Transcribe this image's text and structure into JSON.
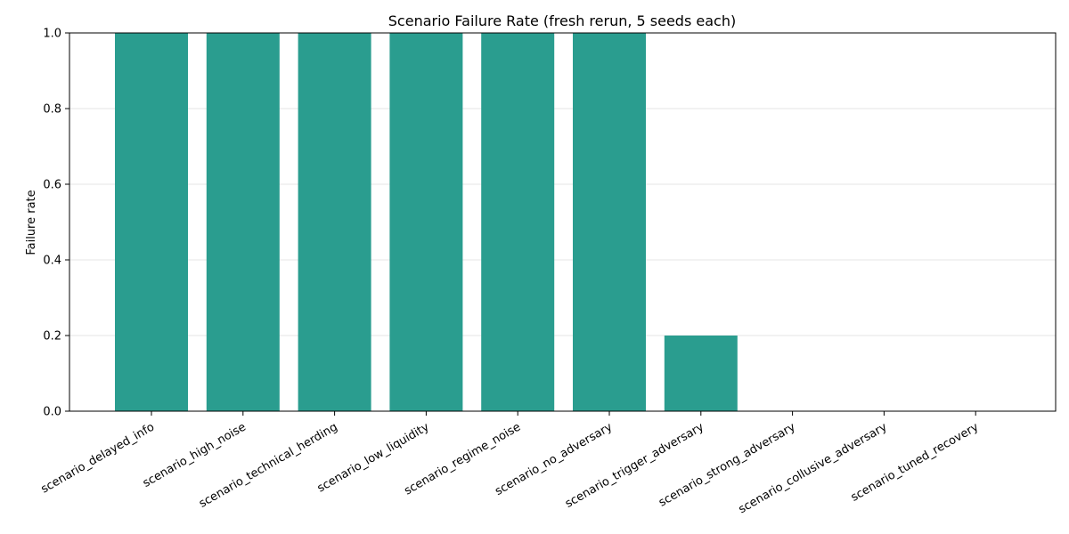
{
  "chart_data": {
    "type": "bar",
    "title": "Scenario Failure Rate (fresh rerun, 5 seeds each)",
    "xlabel": "",
    "ylabel": "Failure rate",
    "ylim": [
      0,
      1.0
    ],
    "yticks": [
      "0.0",
      "0.2",
      "0.4",
      "0.6",
      "0.8",
      "1.0"
    ],
    "grid": "y",
    "bar_color": "#2a9d8f",
    "categories": [
      "scenario_delayed_info",
      "scenario_high_noise",
      "scenario_technical_herding",
      "scenario_low_liquidity",
      "scenario_regime_noise",
      "scenario_no_adversary",
      "scenario_trigger_adversary",
      "scenario_strong_adversary",
      "scenario_collusive_adversary",
      "scenario_tuned_recovery"
    ],
    "values": [
      1.0,
      1.0,
      1.0,
      1.0,
      1.0,
      1.0,
      0.2,
      0.0,
      0.0,
      0.0
    ]
  }
}
